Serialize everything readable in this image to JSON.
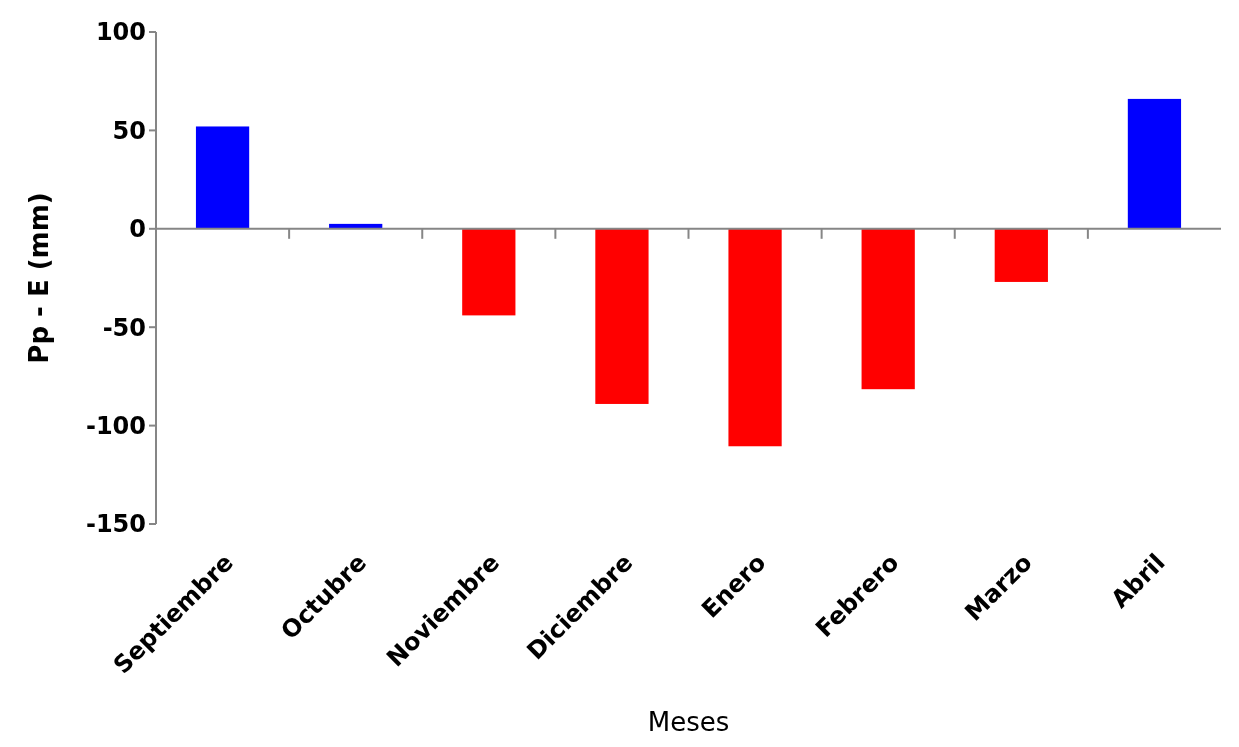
{
  "chart_data": {
    "type": "bar",
    "xlabel": "Meses",
    "ylabel": "Pp - E (mm)",
    "categories": [
      "Septiembre",
      "Octubre",
      "Noviembre",
      "Diciembre",
      "Enero",
      "Febrero",
      "Marzo",
      "Abril"
    ],
    "values": [
      52,
      2.5,
      -44,
      -89,
      -110.5,
      -81.5,
      -27,
      66
    ],
    "colors": [
      "#0000ff",
      "#0000ff",
      "#ff0000",
      "#ff0000",
      "#ff0000",
      "#ff0000",
      "#ff0000",
      "#0000ff"
    ],
    "ylim": [
      -150,
      100
    ],
    "yticks": [
      -150,
      -100,
      -50,
      0,
      50,
      100
    ]
  }
}
